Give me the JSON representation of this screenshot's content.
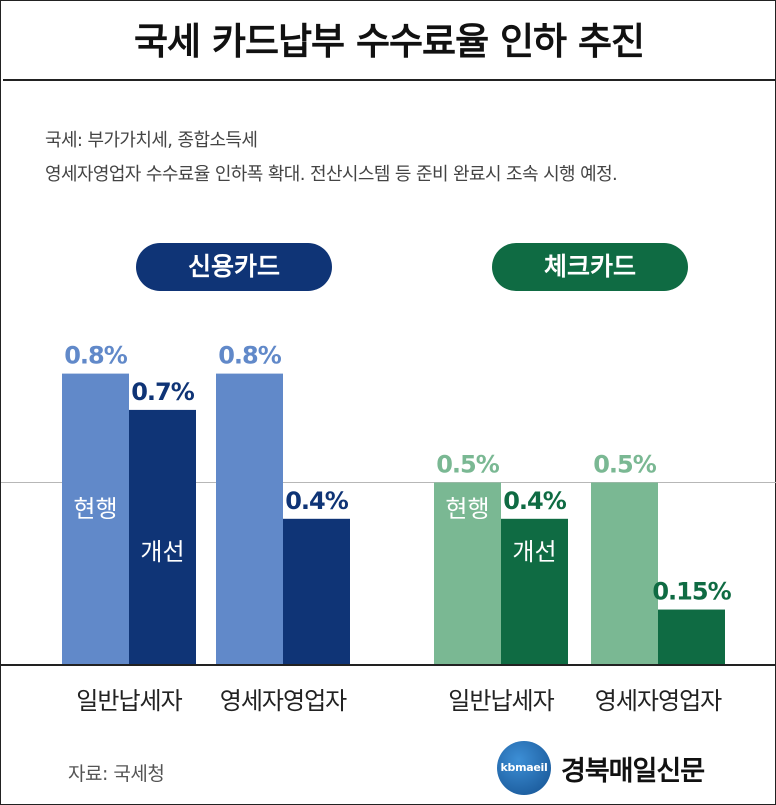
{
  "title": "국세 카드납부 수수료율 인하 추진",
  "notes": [
    "국세: 부가가치세, 종합소득세",
    "영세자영업자 수수료율 인하폭 확대. 전산시스템 등 준비 완료시 조속 시행 예정."
  ],
  "colors": {
    "credit_current": "#6189c9",
    "credit_improved": "#0f3476",
    "check_current": "#7ab893",
    "check_improved": "#0f6b43"
  },
  "chart_data": {
    "type": "bar",
    "groups": [
      {
        "label": "신용카드",
        "categories": [
          "일반납세자",
          "영세자영업자"
        ],
        "series": [
          {
            "name": "현행",
            "values": [
              0.8,
              0.8
            ],
            "labels": [
              "0.8%",
              "0.8%"
            ]
          },
          {
            "name": "개선",
            "values": [
              0.7,
              0.4
            ],
            "labels": [
              "0.7%",
              "0.4%"
            ]
          }
        ]
      },
      {
        "label": "체크카드",
        "categories": [
          "일반납세자",
          "영세자영업자"
        ],
        "series": [
          {
            "name": "현행",
            "values": [
              0.5,
              0.5
            ],
            "labels": [
              "0.5%",
              "0.5%"
            ]
          },
          {
            "name": "개선",
            "values": [
              0.4,
              0.15
            ],
            "labels": [
              "0.4%",
              "0.15%"
            ]
          }
        ]
      }
    ],
    "unit": "%",
    "ylim": [
      0,
      0.8
    ],
    "grid": false
  },
  "source": "자료: 국세청",
  "logo": {
    "badge": "kbmaeil",
    "name": "경북매일신문"
  }
}
